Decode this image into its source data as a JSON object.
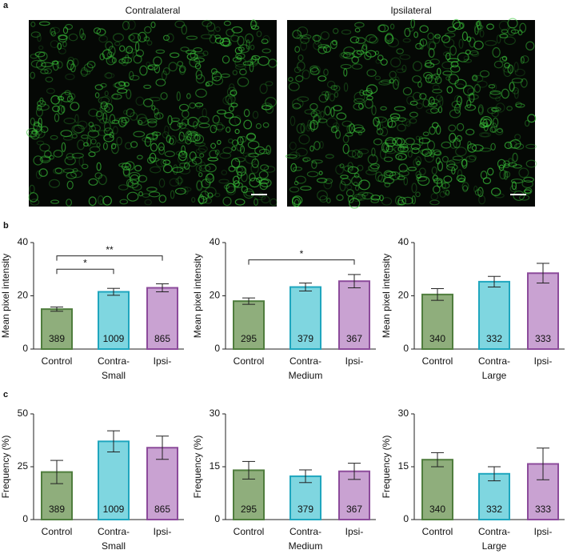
{
  "panel_labels": [
    "a",
    "b",
    "c"
  ],
  "images": [
    {
      "title": "Contralateral"
    },
    {
      "title": "Ipsilateral"
    }
  ],
  "chart_data": [
    {
      "type": "bar",
      "ylabel": "Mean pixel intensity",
      "categories": [
        [
          "Control"
        ],
        [
          "Contra-",
          "Small"
        ],
        [
          "Ipsi-"
        ]
      ],
      "values": [
        15,
        21.5,
        23
      ],
      "errors": [
        0.8,
        1.3,
        1.5
      ],
      "n": [
        389,
        1009,
        865
      ],
      "colors": [
        "#8fae7c",
        "#7fd6e0",
        "#c9a2d2"
      ],
      "edge_colors": [
        "#4f7d3d",
        "#1fa6be",
        "#8c4b9b"
      ],
      "ylim": [
        0,
        40
      ],
      "yticks": [
        0,
        20,
        40
      ],
      "annotations": [
        {
          "from": 0,
          "to": 1,
          "label": "*"
        },
        {
          "from": 0,
          "to": 2,
          "label": "**"
        }
      ]
    },
    {
      "type": "bar",
      "ylabel": "Mean pixel intensity",
      "categories": [
        [
          "Control"
        ],
        [
          "Contra-",
          "Medium"
        ],
        [
          "Ipsi-"
        ]
      ],
      "values": [
        18,
        23.3,
        25.5
      ],
      "errors": [
        1.2,
        1.5,
        2.5
      ],
      "n": [
        295,
        379,
        367
      ],
      "colors": [
        "#8fae7c",
        "#7fd6e0",
        "#c9a2d2"
      ],
      "edge_colors": [
        "#4f7d3d",
        "#1fa6be",
        "#8c4b9b"
      ],
      "ylim": [
        0,
        40
      ],
      "yticks": [
        0,
        20,
        40
      ],
      "annotations": [
        {
          "from": 0,
          "to": 2,
          "label": "*"
        }
      ]
    },
    {
      "type": "bar",
      "ylabel": "Mean pixel intensity",
      "categories": [
        [
          "Control"
        ],
        [
          "Contra-",
          "Large"
        ],
        [
          "Ipsi-"
        ]
      ],
      "values": [
        20.5,
        25.3,
        28.5
      ],
      "errors": [
        2.2,
        2,
        3.7
      ],
      "n": [
        340,
        332,
        333
      ],
      "colors": [
        "#8fae7c",
        "#7fd6e0",
        "#c9a2d2"
      ],
      "edge_colors": [
        "#4f7d3d",
        "#1fa6be",
        "#8c4b9b"
      ],
      "ylim": [
        0,
        40
      ],
      "yticks": [
        0,
        20,
        40
      ],
      "annotations": []
    },
    {
      "type": "bar",
      "ylabel": "Frequency (%)",
      "categories": [
        [
          "Control"
        ],
        [
          "Contra-",
          "Small"
        ],
        [
          "Ipsi-"
        ]
      ],
      "values": [
        22.5,
        37,
        34
      ],
      "errors": [
        5.5,
        5,
        5.5
      ],
      "n": [
        389,
        1009,
        865
      ],
      "colors": [
        "#8fae7c",
        "#7fd6e0",
        "#c9a2d2"
      ],
      "edge_colors": [
        "#4f7d3d",
        "#1fa6be",
        "#8c4b9b"
      ],
      "ylim": [
        0,
        50
      ],
      "yticks": [
        0,
        25,
        50
      ],
      "annotations": []
    },
    {
      "type": "bar",
      "ylabel": "Frequency (%)",
      "categories": [
        [
          "Control"
        ],
        [
          "Contra-",
          "Medium"
        ],
        [
          "Ipsi-"
        ]
      ],
      "values": [
        14,
        12.3,
        13.7
      ],
      "errors": [
        2.5,
        1.8,
        2.3
      ],
      "n": [
        295,
        379,
        367
      ],
      "colors": [
        "#8fae7c",
        "#7fd6e0",
        "#c9a2d2"
      ],
      "edge_colors": [
        "#4f7d3d",
        "#1fa6be",
        "#8c4b9b"
      ],
      "ylim": [
        0,
        30
      ],
      "yticks": [
        0,
        15,
        30
      ],
      "annotations": []
    },
    {
      "type": "bar",
      "ylabel": "Frequency (%)",
      "categories": [
        [
          "Control"
        ],
        [
          "Contra-",
          "Large"
        ],
        [
          "Ipsi-"
        ]
      ],
      "values": [
        17,
        13,
        15.8
      ],
      "errors": [
        2,
        2,
        4.5
      ],
      "n": [
        340,
        332,
        333
      ],
      "colors": [
        "#8fae7c",
        "#7fd6e0",
        "#c9a2d2"
      ],
      "edge_colors": [
        "#4f7d3d",
        "#1fa6be",
        "#8c4b9b"
      ],
      "ylim": [
        0,
        30
      ],
      "yticks": [
        0,
        15,
        30
      ],
      "annotations": []
    }
  ]
}
